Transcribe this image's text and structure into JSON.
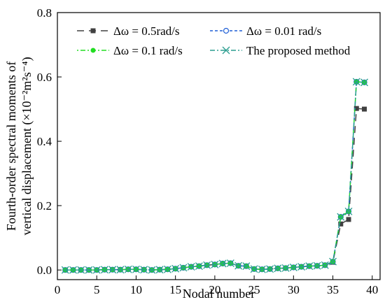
{
  "chart_data": {
    "type": "line",
    "xlabel": "Nodal number",
    "ylabel_line1": "Fourth-order spectral moments of",
    "ylabel_line2": "vertical displacement (×10⁻²m²s⁻⁴)",
    "xlim": [
      0,
      41
    ],
    "ylim": [
      -0.03,
      0.8
    ],
    "xticks": [
      0,
      5,
      10,
      15,
      20,
      25,
      30,
      35,
      40
    ],
    "yticks": [
      0.0,
      0.2,
      0.4,
      0.6,
      0.8
    ],
    "ytick_labels": [
      "0.0",
      "0.2",
      "0.4",
      "0.6",
      "0.8"
    ],
    "legend_placement": "top-left",
    "x": [
      1,
      2,
      3,
      4,
      5,
      6,
      7,
      8,
      9,
      10,
      11,
      12,
      13,
      14,
      15,
      16,
      17,
      18,
      19,
      20,
      21,
      22,
      23,
      24,
      25,
      26,
      27,
      28,
      29,
      30,
      31,
      32,
      33,
      34,
      35,
      36,
      37,
      38,
      39
    ],
    "series": [
      {
        "name": "Δω = 0.5rad/s",
        "color": "#404040",
        "marker": "square",
        "dash": "10,7",
        "values": [
          0.0,
          0.0,
          0.0,
          0.0,
          0.0,
          0.001,
          0.001,
          0.001,
          0.002,
          0.002,
          0.001,
          0.0,
          0.001,
          0.002,
          0.004,
          0.007,
          0.01,
          0.012,
          0.015,
          0.017,
          0.02,
          0.021,
          0.013,
          0.012,
          0.003,
          0.002,
          0.003,
          0.005,
          0.006,
          0.008,
          0.01,
          0.012,
          0.013,
          0.015,
          0.024,
          0.143,
          0.157,
          0.502,
          0.5
        ]
      },
      {
        "name": "Δω = 0.01 rad/s",
        "color": "#1f5fd6",
        "marker": "circle-open",
        "dash": "4,3",
        "values": [
          0.0,
          0.0,
          0.0,
          0.0,
          0.0,
          0.001,
          0.001,
          0.001,
          0.002,
          0.002,
          0.001,
          0.0,
          0.001,
          0.002,
          0.004,
          0.007,
          0.01,
          0.012,
          0.015,
          0.017,
          0.02,
          0.021,
          0.013,
          0.012,
          0.003,
          0.002,
          0.003,
          0.005,
          0.006,
          0.008,
          0.01,
          0.012,
          0.013,
          0.015,
          0.026,
          0.165,
          0.182,
          0.585,
          0.583
        ]
      },
      {
        "name": "Δω = 0.1 rad/s",
        "color": "#22dd22",
        "marker": "circle-filled",
        "dash": "2,3,7,3",
        "values": [
          0.0,
          0.0,
          0.0,
          0.0,
          0.0,
          0.001,
          0.001,
          0.001,
          0.002,
          0.002,
          0.001,
          0.0,
          0.001,
          0.002,
          0.004,
          0.007,
          0.01,
          0.012,
          0.015,
          0.017,
          0.02,
          0.021,
          0.013,
          0.012,
          0.003,
          0.002,
          0.003,
          0.005,
          0.006,
          0.008,
          0.01,
          0.012,
          0.013,
          0.015,
          0.026,
          0.165,
          0.182,
          0.585,
          0.583
        ]
      },
      {
        "name": "The proposed method",
        "color": "#2a9d8f",
        "marker": "x",
        "dash": "7,3,2,3",
        "values": [
          0.0,
          0.0,
          0.0,
          0.0,
          0.0,
          0.001,
          0.001,
          0.001,
          0.002,
          0.002,
          0.001,
          0.0,
          0.001,
          0.002,
          0.004,
          0.007,
          0.01,
          0.012,
          0.015,
          0.017,
          0.02,
          0.021,
          0.013,
          0.012,
          0.003,
          0.002,
          0.003,
          0.005,
          0.006,
          0.008,
          0.01,
          0.012,
          0.013,
          0.015,
          0.026,
          0.165,
          0.182,
          0.585,
          0.583
        ]
      }
    ]
  }
}
